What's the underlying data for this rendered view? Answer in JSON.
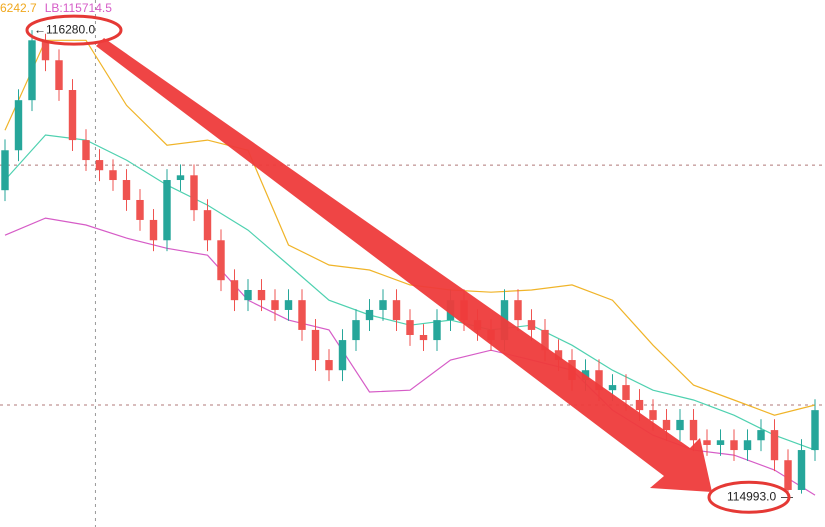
{
  "chart_data": {
    "type": "candlestick",
    "header": [
      {
        "text": "6242.7",
        "color": "#f0a81e"
      },
      {
        "text": "LB:115714.5",
        "color": "#d65cc7"
      }
    ],
    "xlim": [
      -0.37,
      60.74
    ],
    "ylim": [
      114911,
      116363
    ],
    "up_color": "#26a69a",
    "down_color": "#ef5350",
    "open": [
      115839,
      115949,
      116087,
      116252,
      116197,
      116115,
      115977,
      115922,
      115894,
      115867,
      115812,
      115757,
      115701,
      115867,
      115880,
      115784,
      115701,
      115591,
      115536,
      115564,
      115536,
      115509,
      115536,
      115454,
      115371,
      115343,
      115426,
      115481,
      115509,
      115536,
      115481,
      115440,
      115426,
      115481,
      115536,
      115481,
      115454,
      115426,
      115536,
      115481,
      115454,
      115398,
      115371,
      115316,
      115343,
      115288,
      115302,
      115261,
      115233,
      115206,
      115178,
      115206,
      115150,
      115137,
      115150,
      115123,
      115150,
      115178,
      115095,
      115013,
      115123
    ],
    "high": [
      115979,
      116117,
      116280,
      116270,
      116227,
      116145,
      116007,
      115952,
      115924,
      115897,
      115842,
      115787,
      115897,
      115910,
      115910,
      115814,
      115731,
      115621,
      115594,
      115594,
      115566,
      115566,
      115566,
      115484,
      115401,
      115456,
      115511,
      115539,
      115566,
      115566,
      115511,
      115470,
      115511,
      115566,
      115566,
      115511,
      115484,
      115566,
      115566,
      115511,
      115484,
      115428,
      115401,
      115373,
      115373,
      115332,
      115332,
      115291,
      115263,
      115236,
      115236,
      115236,
      115180,
      115180,
      115180,
      115180,
      115208,
      115208,
      115125,
      115153,
      115263
    ],
    "low": [
      115809,
      115919,
      116057,
      116167,
      116085,
      115947,
      115892,
      115864,
      115837,
      115782,
      115727,
      115671,
      115671,
      115837,
      115754,
      115671,
      115561,
      115506,
      115506,
      115506,
      115479,
      115479,
      115424,
      115341,
      115313,
      115313,
      115396,
      115451,
      115479,
      115451,
      115410,
      115396,
      115396,
      115451,
      115451,
      115424,
      115396,
      115396,
      115451,
      115424,
      115368,
      115341,
      115286,
      115286,
      115258,
      115258,
      115231,
      115203,
      115176,
      115148,
      115148,
      115120,
      115107,
      115107,
      115093,
      115093,
      115120,
      115065,
      114993,
      115003,
      115093
    ],
    "close": [
      115949,
      116087,
      116252,
      116197,
      116115,
      115977,
      115922,
      115894,
      115867,
      115812,
      115757,
      115701,
      115867,
      115880,
      115784,
      115701,
      115591,
      115536,
      115564,
      115536,
      115509,
      115536,
      115454,
      115371,
      115343,
      115426,
      115481,
      115509,
      115536,
      115481,
      115440,
      115426,
      115481,
      115536,
      115481,
      115454,
      115426,
      115536,
      115481,
      115454,
      115398,
      115371,
      115316,
      115343,
      115288,
      115302,
      115261,
      115233,
      115206,
      115178,
      115206,
      115150,
      115137,
      115150,
      115123,
      115150,
      115178,
      115095,
      115013,
      115123,
      115233
    ],
    "bands": {
      "x": [
        0,
        3,
        6,
        9,
        12,
        15,
        18,
        21,
        24,
        27,
        30,
        33,
        36,
        39,
        42,
        45,
        48,
        51,
        54,
        57,
        60
      ],
      "series": [
        {
          "color": "#f0b429",
          "values": [
            116004,
            116252,
            116252,
            116073,
            115963,
            115977,
            115949,
            115688,
            115633,
            115619,
            115578,
            115564,
            115558,
            115564,
            115578,
            115536,
            115412,
            115302,
            115261,
            115219,
            115247
          ]
        },
        {
          "color": "#4fd1b0",
          "values": [
            115867,
            115991,
            115977,
            115922,
            115853,
            115798,
            115729,
            115633,
            115536,
            115495,
            115467,
            115481,
            115454,
            115467,
            115412,
            115343,
            115288,
            115261,
            115219,
            115164,
            115123
          ]
        },
        {
          "color": "#d65cc7",
          "values": [
            115715,
            115762,
            115743,
            115707,
            115679,
            115660,
            115536,
            115481,
            115454,
            115283,
            115288,
            115371,
            115398,
            115371,
            115343,
            115233,
            115164,
            115123,
            115109,
            115068,
            114999
          ]
        }
      ]
    },
    "hlines": [
      115908,
      115247
    ],
    "vline": 6.7,
    "annotations": [
      {
        "value": 116280,
        "label": "116280.0",
        "index": 2
      },
      {
        "value": 114993,
        "label": "114993.0",
        "index": 58
      }
    ]
  }
}
